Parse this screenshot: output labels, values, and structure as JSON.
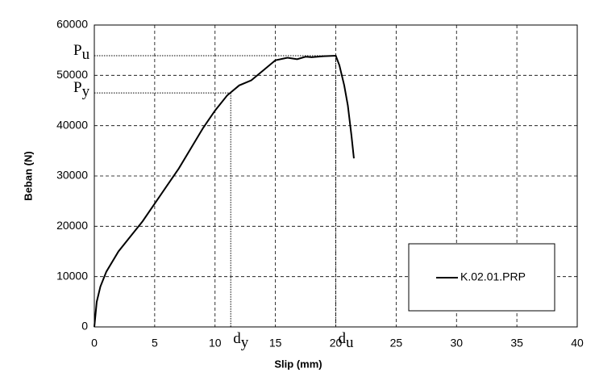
{
  "chart_data": {
    "type": "line",
    "x_label": "Slip (mm)",
    "y_label": "Beban (N)",
    "xlim": [
      0,
      40
    ],
    "xticks": [
      0,
      5,
      10,
      15,
      20,
      25,
      30,
      35,
      40
    ],
    "ylim": [
      0,
      60000
    ],
    "yticks": [
      0,
      10000,
      20000,
      30000,
      40000,
      50000,
      60000
    ],
    "grid": true,
    "legend": "lower right",
    "series": [
      {
        "name": "K.02.01.PRP",
        "color": "#000000",
        "x": [
          0,
          0.2,
          0.5,
          1,
          2,
          3,
          4,
          5,
          6,
          7,
          8,
          9,
          10,
          11,
          12,
          13,
          14,
          15,
          16,
          16.8,
          17.5,
          18,
          19,
          20,
          20.3,
          20.7,
          21,
          21.3,
          21.5
        ],
        "values": [
          0,
          5000,
          8000,
          11000,
          15000,
          18000,
          21000,
          24500,
          28000,
          31500,
          35500,
          39500,
          43000,
          46000,
          48000,
          49000,
          51000,
          53000,
          53500,
          53200,
          53700,
          53600,
          53800,
          53900,
          52000,
          48000,
          44000,
          38000,
          33500
        ]
      }
    ],
    "points": [
      {
        "x_name": {
          "symbol": "d",
          "subscript": "u"
        },
        "y_name": {
          "symbol": "P",
          "subscript": "u"
        },
        "x": 20,
        "y": 53900
      },
      {
        "x_name": {
          "symbol": "d",
          "subscript": "y"
        },
        "y_name": {
          "symbol": "P",
          "subscript": "y"
        },
        "x": 11.3,
        "y": 46500
      }
    ]
  }
}
